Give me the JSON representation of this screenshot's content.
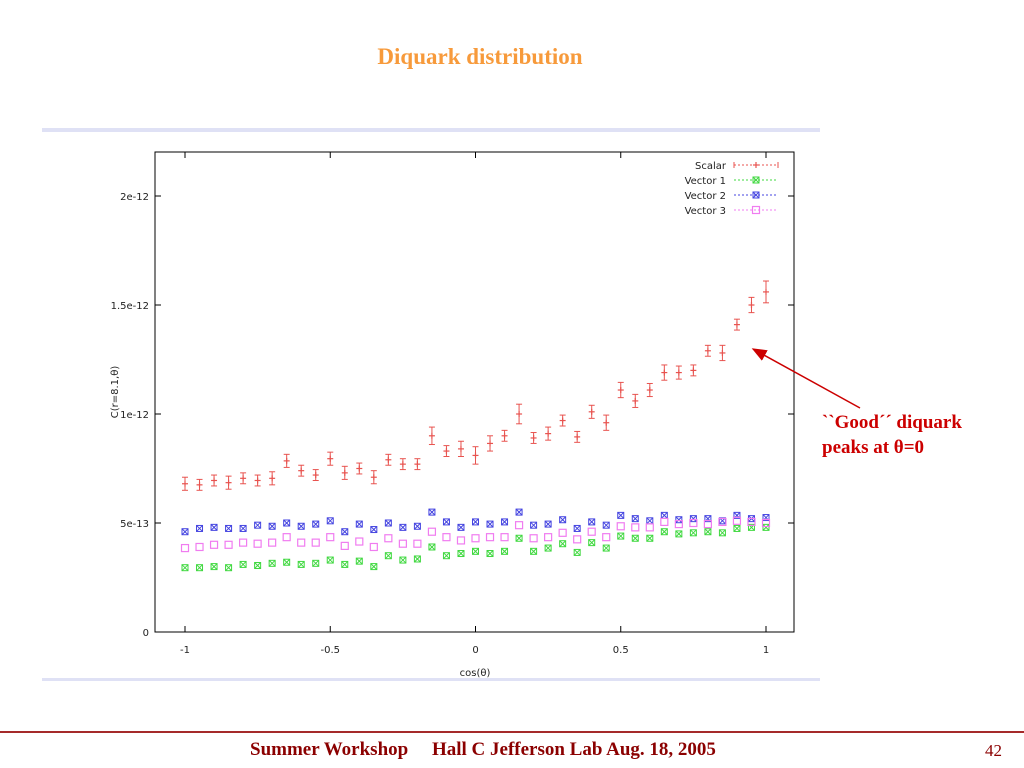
{
  "slide": {
    "title": "Diquark distribution",
    "annotation_line1": "``Good´´ diquark",
    "annotation_line2": "peaks at θ=0",
    "footer": "Summer Workshop     Hall C Jefferson Lab Aug. 18, 2005",
    "page_number": "42"
  },
  "colors": {
    "title": "#f79a3b",
    "annotation": "#cc0000",
    "footer": "#8b0000",
    "scalar": "#e8534f",
    "vector1": "#3fd83f",
    "vector2": "#4444e0",
    "vector3": "#f07cf0"
  },
  "chart_data": {
    "type": "scatter",
    "xlabel": "cos(θ)",
    "ylabel": "C(r=8.1,θ)",
    "xlim": [
      -1,
      1
    ],
    "ylim": [
      0,
      2.2e-12
    ],
    "grid": false,
    "legend_position": "top-right",
    "x_ticks": [
      {
        "value": -1,
        "label": "-1"
      },
      {
        "value": -0.5,
        "label": "-0.5"
      },
      {
        "value": 0,
        "label": "0"
      },
      {
        "value": 0.5,
        "label": "0.5"
      },
      {
        "value": 1,
        "label": "1"
      }
    ],
    "y_ticks": [
      {
        "value": 0,
        "label": "0"
      },
      {
        "value": 5e-13,
        "label": "5e-13"
      },
      {
        "value": 1e-12,
        "label": "1e-12"
      },
      {
        "value": 1.5e-12,
        "label": "1.5e-12"
      },
      {
        "value": 2e-12,
        "label": "2e-12"
      }
    ],
    "x": [
      -1,
      -0.95,
      -0.9,
      -0.85,
      -0.8,
      -0.75,
      -0.7,
      -0.65,
      -0.6,
      -0.55,
      -0.5,
      -0.45,
      -0.4,
      -0.35,
      -0.3,
      -0.25,
      -0.2,
      -0.15,
      -0.1,
      -0.05,
      0,
      0.05,
      0.1,
      0.15,
      0.2,
      0.25,
      0.3,
      0.35,
      0.4,
      0.45,
      0.5,
      0.55,
      0.6,
      0.65,
      0.7,
      0.75,
      0.8,
      0.85,
      0.9,
      0.95,
      1
    ],
    "series": [
      {
        "name": "Scalar",
        "marker": "plus-errorbar",
        "values": [
          6.8e-13,
          6.75e-13,
          6.95e-13,
          6.85e-13,
          7.05e-13,
          6.95e-13,
          7.05e-13,
          7.85e-13,
          7.4e-13,
          7.2e-13,
          7.95e-13,
          7.3e-13,
          7.5e-13,
          7.1e-13,
          7.9e-13,
          7.7e-13,
          7.7e-13,
          9e-13,
          8.3e-13,
          8.4e-13,
          8.1e-13,
          8.65e-13,
          9e-13,
          1e-12,
          8.9e-13,
          9.1e-13,
          9.7e-13,
          8.95e-13,
          1.01e-12,
          9.6e-13,
          1.11e-12,
          1.06e-12,
          1.11e-12,
          1.19e-12,
          1.19e-12,
          1.2e-12,
          1.29e-12,
          1.28e-12,
          1.41e-12,
          1.5e-12,
          1.56e-12
        ],
        "errors": [
          3e-14,
          2.5e-14,
          2.5e-14,
          3e-14,
          2.5e-14,
          2.5e-14,
          3e-14,
          3e-14,
          2.5e-14,
          2.5e-14,
          3e-14,
          3e-14,
          2.5e-14,
          3e-14,
          2.5e-14,
          2.5e-14,
          2.5e-14,
          4e-14,
          2.5e-14,
          3.5e-14,
          4e-14,
          3.5e-14,
          2.5e-14,
          4.5e-14,
          2.5e-14,
          3e-14,
          2.5e-14,
          2.5e-14,
          3e-14,
          3.5e-14,
          3.5e-14,
          3e-14,
          3e-14,
          3.5e-14,
          3e-14,
          2.5e-14,
          2.5e-14,
          3.5e-14,
          2.5e-14,
          3.5e-14,
          5e-14
        ]
      },
      {
        "name": "Vector 1",
        "marker": "x-square",
        "values": [
          2.95e-13,
          2.95e-13,
          3e-13,
          2.95e-13,
          3.1e-13,
          3.05e-13,
          3.15e-13,
          3.2e-13,
          3.1e-13,
          3.15e-13,
          3.3e-13,
          3.1e-13,
          3.25e-13,
          3e-13,
          3.5e-13,
          3.3e-13,
          3.35e-13,
          3.9e-13,
          3.5e-13,
          3.6e-13,
          3.7e-13,
          3.6e-13,
          3.7e-13,
          4.3e-13,
          3.7e-13,
          3.85e-13,
          4.05e-13,
          3.65e-13,
          4.1e-13,
          3.85e-13,
          4.4e-13,
          4.3e-13,
          4.3e-13,
          4.6e-13,
          4.5e-13,
          4.55e-13,
          4.6e-13,
          4.55e-13,
          4.75e-13,
          4.8e-13,
          4.8e-13
        ]
      },
      {
        "name": "Vector 2",
        "marker": "x-square",
        "values": [
          4.6e-13,
          4.75e-13,
          4.8e-13,
          4.75e-13,
          4.75e-13,
          4.9e-13,
          4.85e-13,
          5e-13,
          4.85e-13,
          4.95e-13,
          5.1e-13,
          4.6e-13,
          4.95e-13,
          4.7e-13,
          5e-13,
          4.8e-13,
          4.85e-13,
          5.5e-13,
          5.05e-13,
          4.8e-13,
          5.05e-13,
          4.95e-13,
          5.05e-13,
          5.5e-13,
          4.9e-13,
          4.95e-13,
          5.15e-13,
          4.75e-13,
          5.05e-13,
          4.9e-13,
          5.35e-13,
          5.2e-13,
          5.1e-13,
          5.35e-13,
          5.15e-13,
          5.2e-13,
          5.2e-13,
          5.1e-13,
          5.35e-13,
          5.2e-13,
          5.25e-13
        ]
      },
      {
        "name": "Vector 3",
        "marker": "square",
        "values": [
          3.85e-13,
          3.9e-13,
          4e-13,
          4e-13,
          4.1e-13,
          4.05e-13,
          4.1e-13,
          4.35e-13,
          4.1e-13,
          4.1e-13,
          4.35e-13,
          3.95e-13,
          4.15e-13,
          3.9e-13,
          4.3e-13,
          4.05e-13,
          4.05e-13,
          4.6e-13,
          4.35e-13,
          4.2e-13,
          4.3e-13,
          4.35e-13,
          4.35e-13,
          4.9e-13,
          4.3e-13,
          4.35e-13,
          4.55e-13,
          4.25e-13,
          4.6e-13,
          4.35e-13,
          4.85e-13,
          4.8e-13,
          4.8e-13,
          5.05e-13,
          4.95e-13,
          5e-13,
          4.95e-13,
          5.05e-13,
          5.1e-13,
          5.05e-13,
          5e-13
        ]
      }
    ],
    "annotations": [
      {
        "text": "``Good´´ diquark peaks at θ=0",
        "points_to_x": 0.95,
        "points_to_y": 1.28e-12
      }
    ]
  }
}
